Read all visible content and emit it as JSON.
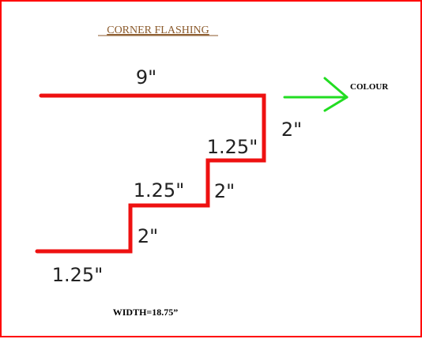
{
  "title": "CORNER FLASHING",
  "colour_label": "COLOUR",
  "width_label": "WIDTH=18.75”",
  "dimensions": {
    "top": "9\"",
    "upper_riser": "2\"",
    "upper_step": "1.25\"",
    "middle_riser": "2\"",
    "middle_step": "1.25\"",
    "lower_riser": "2\"",
    "bottom": "1.25\""
  },
  "colors": {
    "border": "#ff0000",
    "profile": "#ee1111",
    "arrow": "#22dd22",
    "title": "#8b5a2b"
  }
}
